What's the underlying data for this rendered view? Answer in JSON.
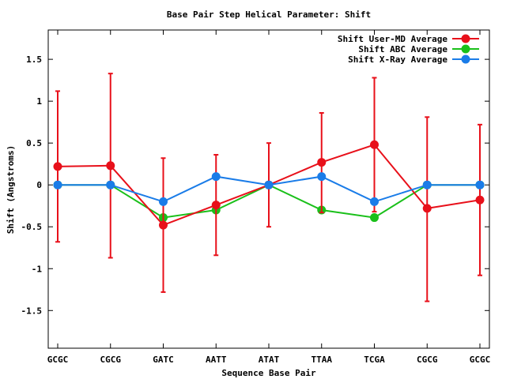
{
  "chart_data": {
    "type": "line",
    "title": "Base Pair Step Helical Parameter: Shift",
    "xlabel": "Sequence Base Pair",
    "ylabel": "Shift (Angstroms)",
    "categories": [
      "GCGC",
      "CGCG",
      "GATC",
      "AATT",
      "ATAT",
      "TTAA",
      "TCGA",
      "CGCG",
      "GCGC"
    ],
    "ylim": [
      -1.95,
      1.85
    ],
    "yticks": [
      -1.5,
      -1,
      -0.5,
      0,
      0.5,
      1,
      1.5
    ],
    "ytick_labels": [
      "-1.5",
      "-1",
      "-0.5",
      "0",
      "0.5",
      "1",
      "1.5"
    ],
    "grid": false,
    "legend_position": "top-right",
    "series": [
      {
        "name": "Shift User-MD Average",
        "color": "#e8101a",
        "values": [
          0.22,
          0.23,
          -0.48,
          -0.24,
          0.0,
          0.27,
          0.48,
          -0.28,
          -0.18
        ],
        "error_low": [
          -0.68,
          -0.87,
          -1.28,
          -0.84,
          -0.5,
          -0.33,
          -0.32,
          -1.39,
          -1.08
        ],
        "error_high": [
          1.12,
          1.33,
          0.32,
          0.36,
          0.5,
          0.86,
          1.28,
          0.81,
          0.72
        ]
      },
      {
        "name": "Shift ABC Average",
        "color": "#1ac01a",
        "values": [
          0.0,
          0.0,
          -0.39,
          -0.3,
          0.0,
          -0.3,
          -0.39,
          0.0,
          0.0
        ]
      },
      {
        "name": "Shift X-Ray Average",
        "color": "#1a7ce8",
        "values": [
          0.0,
          0.0,
          -0.2,
          0.1,
          0.0,
          0.1,
          -0.2,
          0.0,
          0.0
        ]
      }
    ]
  }
}
